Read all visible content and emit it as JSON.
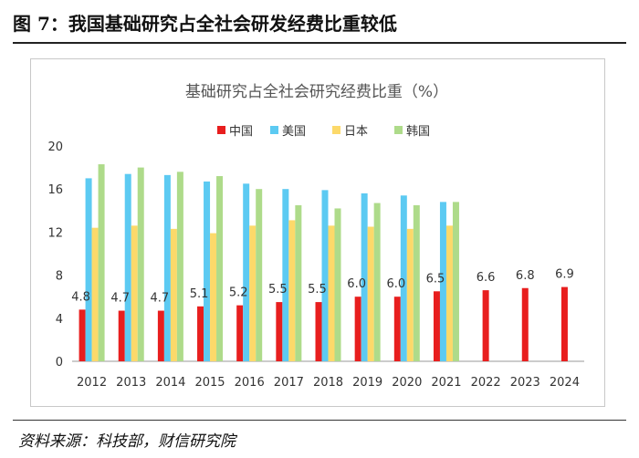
{
  "figure": {
    "title": "图 7：我国基础研究占全社会研发经费比重较低",
    "source": "资料来源：科技部，财信研究院"
  },
  "chart_data": {
    "type": "bar",
    "title": "基础研究占全社会研究经费比重（%）",
    "xlabel": "",
    "ylabel": "",
    "categories": [
      "2012",
      "2013",
      "2014",
      "2015",
      "2016",
      "2017",
      "2018",
      "2019",
      "2020",
      "2021",
      "2022",
      "2023",
      "2024"
    ],
    "ylim": [
      0,
      20
    ],
    "yticks": [
      0,
      4,
      8,
      12,
      16,
      20
    ],
    "legend_position": "top-center",
    "grid": false,
    "series": [
      {
        "name": "中国",
        "color": "#e81e1e",
        "values": [
          4.8,
          4.7,
          4.7,
          5.1,
          5.2,
          5.5,
          5.5,
          6.0,
          6.0,
          6.5,
          6.6,
          6.8,
          6.9
        ],
        "labels": [
          "4.8",
          "4.7",
          "4.7",
          "5.1",
          "5.2",
          "5.5",
          "5.5",
          "6.0",
          "6.0",
          "6.5",
          "6.6",
          "6.8",
          "6.9"
        ]
      },
      {
        "name": "美国",
        "color": "#5ccaf2",
        "values": [
          17.0,
          17.4,
          17.3,
          16.7,
          16.5,
          16.0,
          15.9,
          15.6,
          15.4,
          14.8,
          null,
          null,
          null
        ]
      },
      {
        "name": "日本",
        "color": "#fcd96a",
        "values": [
          12.4,
          12.6,
          12.3,
          11.9,
          12.6,
          13.1,
          12.6,
          12.5,
          12.3,
          12.6,
          null,
          null,
          null
        ]
      },
      {
        "name": "韩国",
        "color": "#aedb8a",
        "values": [
          18.3,
          18.0,
          17.6,
          17.2,
          16.0,
          14.5,
          14.2,
          14.7,
          14.5,
          14.8,
          null,
          null,
          null
        ]
      }
    ]
  }
}
